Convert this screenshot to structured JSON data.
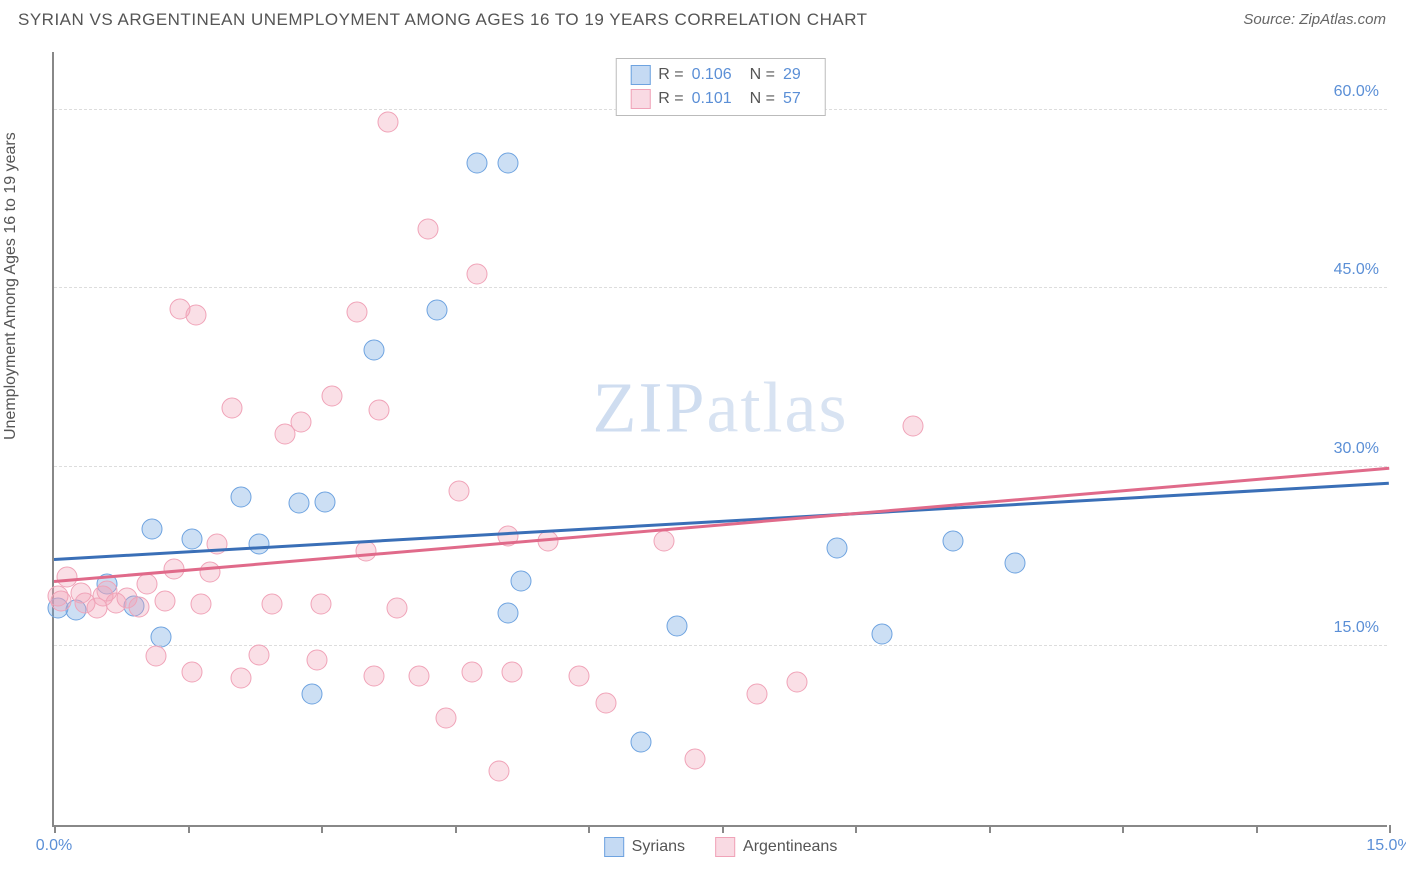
{
  "header": {
    "title": "SYRIAN VS ARGENTINEAN UNEMPLOYMENT AMONG AGES 16 TO 19 YEARS CORRELATION CHART",
    "source_prefix": "Source: ",
    "source_name": "ZipAtlas.com"
  },
  "chart": {
    "type": "scatter",
    "ylabel": "Unemployment Among Ages 16 to 19 years",
    "background_color": "#ffffff",
    "grid_color": "#dddddd",
    "axis_color": "#888888",
    "tick_label_color": "#5b8fd6",
    "x_domain": [
      0,
      15
    ],
    "y_domain": [
      0,
      65
    ],
    "x_ticks": [
      0,
      1.5,
      3.0,
      4.5,
      6.0,
      7.5,
      9.0,
      10.5,
      12.0,
      13.5,
      15.0
    ],
    "x_tick_labels": {
      "0": "0.0%",
      "15": "15.0%"
    },
    "y_ticks": [
      15,
      30,
      45,
      60
    ],
    "y_tick_labels": {
      "15": "15.0%",
      "30": "30.0%",
      "45": "45.0%",
      "60": "60.0%"
    },
    "marker_radius": 10.5,
    "marker_fill_opacity": 0.35,
    "marker_stroke_width": 1.5,
    "watermark": "ZIPatlas",
    "series": [
      {
        "name": "Syrians",
        "color": "#6ea3e0",
        "line_color": "#3a6fb7",
        "R": "0.106",
        "N": "29",
        "trend": {
          "x1": 0,
          "y1": 22.2,
          "x2": 15,
          "y2": 28.6
        },
        "points": [
          [
            0.05,
            18.2
          ],
          [
            0.25,
            18.0
          ],
          [
            0.6,
            20.2
          ],
          [
            0.9,
            18.4
          ],
          [
            1.1,
            24.8
          ],
          [
            1.2,
            15.8
          ],
          [
            1.55,
            24.0
          ],
          [
            2.1,
            27.5
          ],
          [
            2.3,
            23.6
          ],
          [
            2.75,
            27.0
          ],
          [
            2.9,
            11.0
          ],
          [
            3.05,
            27.1
          ],
          [
            3.6,
            39.8
          ],
          [
            4.3,
            43.2
          ],
          [
            4.75,
            55.5
          ],
          [
            5.1,
            17.8
          ],
          [
            5.1,
            55.5
          ],
          [
            5.25,
            20.5
          ],
          [
            6.6,
            7.0
          ],
          [
            7.0,
            16.7
          ],
          [
            8.8,
            23.2
          ],
          [
            9.3,
            16.0
          ],
          [
            10.1,
            23.8
          ],
          [
            10.8,
            22.0
          ]
        ]
      },
      {
        "name": "Argentineans",
        "color": "#f0a3b8",
        "line_color": "#e06a8a",
        "R": "0.101",
        "N": "57",
        "trend": {
          "x1": 0,
          "y1": 20.3,
          "x2": 15,
          "y2": 29.8
        },
        "points": [
          [
            0.05,
            19.2
          ],
          [
            0.08,
            18.8
          ],
          [
            0.15,
            20.8
          ],
          [
            0.3,
            19.5
          ],
          [
            0.35,
            18.6
          ],
          [
            0.48,
            18.2
          ],
          [
            0.55,
            19.2
          ],
          [
            0.6,
            19.6
          ],
          [
            0.7,
            18.6
          ],
          [
            0.82,
            19.0
          ],
          [
            0.95,
            18.3
          ],
          [
            1.05,
            20.2
          ],
          [
            1.15,
            14.2
          ],
          [
            1.25,
            18.8
          ],
          [
            1.35,
            21.5
          ],
          [
            1.42,
            43.3
          ],
          [
            1.55,
            12.8
          ],
          [
            1.6,
            42.8
          ],
          [
            1.65,
            18.5
          ],
          [
            1.75,
            21.2
          ],
          [
            1.83,
            23.6
          ],
          [
            2.0,
            35.0
          ],
          [
            2.1,
            12.3
          ],
          [
            2.3,
            14.3
          ],
          [
            2.45,
            18.5
          ],
          [
            2.6,
            32.8
          ],
          [
            2.78,
            33.8
          ],
          [
            2.95,
            13.8
          ],
          [
            3.0,
            18.5
          ],
          [
            3.12,
            36.0
          ],
          [
            3.4,
            43.0
          ],
          [
            3.5,
            23.0
          ],
          [
            3.6,
            12.5
          ],
          [
            3.65,
            34.8
          ],
          [
            3.75,
            59.0
          ],
          [
            3.85,
            18.2
          ],
          [
            4.1,
            12.5
          ],
          [
            4.2,
            50.0
          ],
          [
            4.4,
            9.0
          ],
          [
            4.55,
            28.0
          ],
          [
            4.7,
            12.8
          ],
          [
            4.75,
            46.2
          ],
          [
            5.0,
            4.5
          ],
          [
            5.1,
            24.2
          ],
          [
            5.15,
            12.8
          ],
          [
            5.55,
            23.8
          ],
          [
            5.9,
            12.5
          ],
          [
            6.2,
            10.2
          ],
          [
            6.85,
            23.8
          ],
          [
            7.2,
            5.5
          ],
          [
            7.9,
            11.0
          ],
          [
            8.35,
            12.0
          ],
          [
            9.65,
            33.5
          ]
        ]
      }
    ]
  }
}
